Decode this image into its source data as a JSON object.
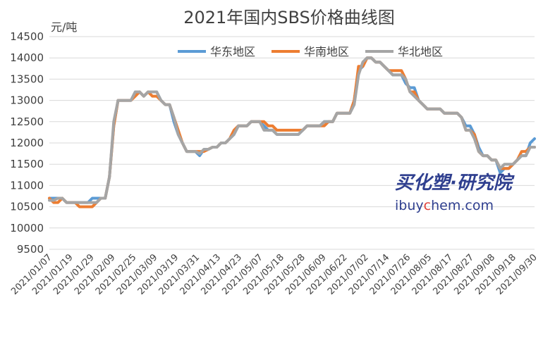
{
  "chart_data": {
    "type": "line",
    "title": "2021年国内SBS价格曲线图",
    "ylabel": "元/吨",
    "ylim": [
      9500,
      14500
    ],
    "yticks": [
      9500,
      10000,
      10500,
      11000,
      11500,
      12000,
      12500,
      13000,
      13500,
      14000,
      14500
    ],
    "x_tick_labels": [
      "2021/01/07",
      "2021/01/19",
      "2021/01/29",
      "2021/02/09",
      "2021/02/25",
      "2021/03/09",
      "2021/03/19",
      "2021/03/31",
      "2021/04/13",
      "2021/04/23",
      "2021/05/07",
      "2021/05/18",
      "2021/05/28",
      "2021/06/09",
      "2021/06/22",
      "2021/07/02",
      "2021/07/14",
      "2021/07/26",
      "2021/08/05",
      "2021/08/17",
      "2021/08/27",
      "2021/09/08",
      "2021/09/18",
      "2021/09/30"
    ],
    "grid": true,
    "legend_position": "top-right",
    "series": [
      {
        "name": "华东地区",
        "color": "#5b9bd5",
        "values": [
          10700,
          10700,
          10700,
          10700,
          10600,
          10600,
          10600,
          10600,
          10600,
          10600,
          10700,
          10700,
          10700,
          10700,
          11200,
          12400,
          13000,
          13000,
          13000,
          13000,
          13200,
          13200,
          13100,
          13200,
          13200,
          13200,
          13000,
          12900,
          12900,
          12500,
          12200,
          12000,
          11800,
          11800,
          11800,
          11700,
          11850,
          11850,
          11900,
          11900,
          12000,
          12000,
          12100,
          12200,
          12400,
          12400,
          12400,
          12500,
          12500,
          12500,
          12400,
          12300,
          12300,
          12200,
          12200,
          12200,
          12200,
          12200,
          12200,
          12300,
          12400,
          12400,
          12400,
          12400,
          12500,
          12500,
          12500,
          12700,
          12700,
          12700,
          12700,
          13000,
          13700,
          13800,
          14000,
          14000,
          13900,
          13900,
          13800,
          13700,
          13600,
          13600,
          13600,
          13400,
          13300,
          13300,
          13000,
          12900,
          12800,
          12800,
          12800,
          12800,
          12700,
          12700,
          12700,
          12700,
          12600,
          12400,
          12400,
          12200,
          11900,
          11700,
          11700,
          11600,
          11600,
          11300,
          11400,
          11400,
          11500,
          11600,
          11700,
          11700,
          12000,
          12100
        ]
      },
      {
        "name": "华南地区",
        "color": "#ed7d31",
        "values": [
          10700,
          10600,
          10600,
          10700,
          10600,
          10600,
          10600,
          10500,
          10500,
          10500,
          10500,
          10600,
          10700,
          10700,
          11200,
          12400,
          13000,
          13000,
          13000,
          13000,
          13100,
          13200,
          13100,
          13200,
          13100,
          13100,
          13000,
          12900,
          12900,
          12600,
          12300,
          12000,
          11800,
          11800,
          11800,
          11800,
          11800,
          11850,
          11900,
          11900,
          12000,
          12000,
          12100,
          12300,
          12400,
          12400,
          12400,
          12500,
          12500,
          12500,
          12500,
          12400,
          12400,
          12300,
          12300,
          12300,
          12300,
          12300,
          12300,
          12300,
          12400,
          12400,
          12400,
          12400,
          12400,
          12500,
          12500,
          12700,
          12700,
          12700,
          12700,
          13000,
          13800,
          13800,
          14000,
          14000,
          13900,
          13900,
          13800,
          13700,
          13700,
          13700,
          13700,
          13500,
          13200,
          13200,
          13000,
          12900,
          12800,
          12800,
          12800,
          12800,
          12700,
          12700,
          12700,
          12700,
          12600,
          12300,
          12300,
          12200,
          11800,
          11700,
          11700,
          11600,
          11600,
          11400,
          11400,
          11400,
          11500,
          11600,
          11800,
          11800,
          11900,
          11900
        ]
      },
      {
        "name": "华北地区",
        "color": "#a5a5a5",
        "values": [
          10650,
          10650,
          10700,
          10700,
          10600,
          10600,
          10600,
          10600,
          10600,
          10600,
          10600,
          10600,
          10700,
          10700,
          11200,
          12500,
          13000,
          13000,
          13000,
          13000,
          13200,
          13200,
          13100,
          13200,
          13200,
          13200,
          13000,
          12900,
          12900,
          12600,
          12200,
          12000,
          11800,
          11800,
          11800,
          11750,
          11850,
          11850,
          11900,
          11900,
          12000,
          12000,
          12100,
          12200,
          12400,
          12400,
          12400,
          12500,
          12500,
          12500,
          12300,
          12300,
          12300,
          12200,
          12200,
          12200,
          12200,
          12200,
          12200,
          12300,
          12400,
          12400,
          12400,
          12400,
          12500,
          12500,
          12500,
          12700,
          12700,
          12700,
          12700,
          12900,
          13600,
          13900,
          14000,
          14000,
          13900,
          13900,
          13800,
          13700,
          13600,
          13600,
          13600,
          13500,
          13200,
          13100,
          13000,
          12900,
          12800,
          12800,
          12800,
          12800,
          12700,
          12700,
          12700,
          12700,
          12600,
          12300,
          12300,
          12100,
          11800,
          11700,
          11700,
          11600,
          11600,
          11400,
          11500,
          11500,
          11500,
          11600,
          11700,
          11700,
          11900,
          11900
        ]
      }
    ]
  },
  "watermark": {
    "brand": "买化塑·研究院",
    "url_prefix": "ibuy",
    "url_accent": "c",
    "url_suffix": "hem.com"
  }
}
